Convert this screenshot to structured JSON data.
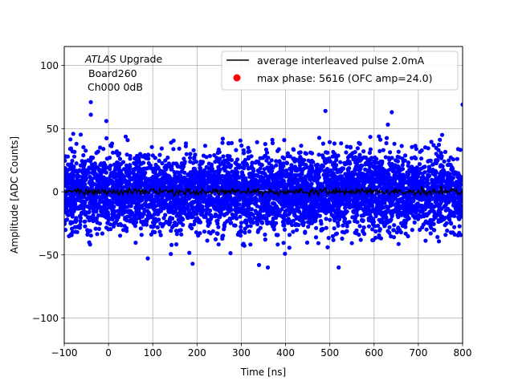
{
  "chart_data": {
    "type": "scatter",
    "xlabel": "Time [ns]",
    "ylabel": "Amplitude [ADC Counts]",
    "xlim": [
      -100,
      800
    ],
    "ylim": [
      -120,
      115
    ],
    "xticks": [
      -100,
      0,
      100,
      200,
      300,
      400,
      500,
      600,
      700,
      800
    ],
    "xtick_labels": [
      "−100",
      "0",
      "100",
      "200",
      "300",
      "400",
      "500",
      "600",
      "700",
      "800"
    ],
    "yticks": [
      -100,
      -50,
      0,
      50,
      100
    ],
    "ytick_labels": [
      "−100",
      "−50",
      "0",
      "50",
      "100"
    ],
    "grid": true,
    "annotation": {
      "experiment": "ATLAS",
      "experiment_suffix": " Upgrade",
      "line2": "Board260",
      "line3": "Ch000 0dB"
    },
    "legend": {
      "placement": "upper-right",
      "entries": [
        {
          "label": "average interleaved pulse 2.0mA",
          "marker": "line",
          "color": "#000000"
        },
        {
          "label": "max phase: 5616 (OFC amp=24.0)",
          "marker": "dot",
          "color": "#ff0000"
        }
      ]
    },
    "series": [
      {
        "kind": "scatter",
        "color": "#0000ff",
        "description_note": "dense noise band of individual ADC samples",
        "x_range": [
          -100,
          800
        ],
        "core_sigma": 15,
        "notable_points": [
          {
            "x": -40,
            "y": 71
          },
          {
            "x": -40,
            "y": 61
          },
          {
            "x": 490,
            "y": 64
          },
          {
            "x": 640,
            "y": 63
          },
          {
            "x": -5,
            "y": 56
          },
          {
            "x": 800,
            "y": 69
          },
          {
            "x": 190,
            "y": -57
          },
          {
            "x": 340,
            "y": -58
          },
          {
            "x": 520,
            "y": -60
          },
          {
            "x": 360,
            "y": -60
          }
        ]
      },
      {
        "kind": "line",
        "color": "#000000",
        "name": "average interleaved pulse 2.0mA",
        "approx_value": 0
      }
    ]
  }
}
